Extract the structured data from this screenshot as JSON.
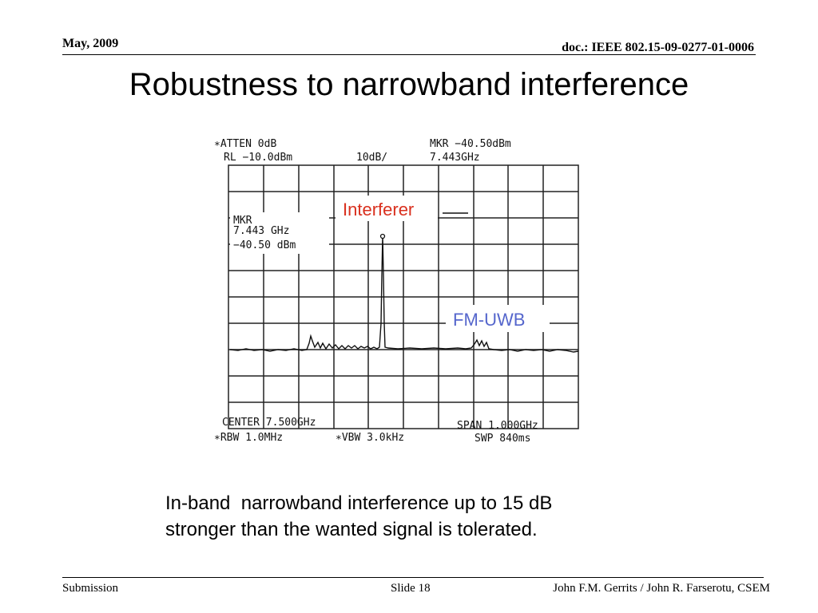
{
  "header": {
    "date": "May, 2009",
    "doc_id": "doc.: IEEE 802.15-09-0277-01-0006"
  },
  "title": "Robustness to narrowband interference",
  "figure": {
    "screen": {
      "atten": "∗ATTEN 0dB",
      "ref_level": "RL −10.0dBm",
      "scale": "10dB/",
      "marker_top_1": "MKR −40.50dBm",
      "marker_top_2": "7.443GHz",
      "marker_box_1": "MKR",
      "marker_box_2": "7.443 GHz",
      "marker_box_3": "−40.50 dBm",
      "center": "CENTER 7.500GHz",
      "span": "SPAN 1.000GHz",
      "rbw": "∗RBW 1.0MHz",
      "vbw": "∗VBW 3.0kHz",
      "sweep": "SWP 840ms"
    },
    "annotations": {
      "interferer": "Interferer",
      "fm_uwb": "FM-UWB",
      "interferer_color": "#d9301e",
      "fm_uwb_color": "#5566cc"
    }
  },
  "caption": {
    "line1": "In-band  narrowband interference up to 15 dB",
    "line2": "stronger than the wanted signal is tolerated."
  },
  "footer": {
    "left": "Submission",
    "slide": "Slide 18",
    "authors": "John F.M. Gerrits / John R. Farserotu, CSEM"
  }
}
